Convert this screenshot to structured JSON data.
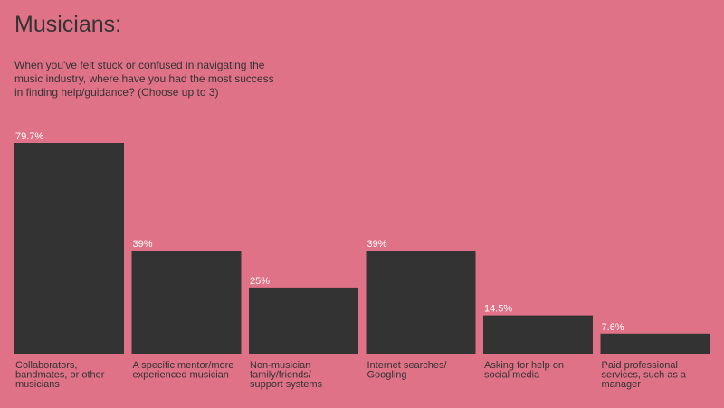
{
  "title": "Musicians:",
  "subtitle": "When you've felt stuck or confused in navigating the music industry, where have you had the most success in finding help/guidance? (Choose up to 3)",
  "colors": {
    "background": "#e07287",
    "bar": "#333333",
    "value_label": "#ffffff",
    "text": "#333333"
  },
  "chart_data": {
    "type": "bar",
    "title": "Musicians:",
    "subtitle": "When you've felt stuck or confused in navigating the music industry, where have you had the most success in finding help/guidance? (Choose up to 3)",
    "categories": [
      [
        "Collaborators,",
        "bandmates, or other",
        "musicians"
      ],
      [
        "A specific mentor/more",
        "experienced musician"
      ],
      [
        "Non-musician",
        "family/friends/",
        "support systems"
      ],
      [
        "Internet searches/",
        "Googling"
      ],
      [
        "Asking for help on",
        "social media"
      ],
      [
        "Paid professional",
        "services, such as a",
        "manager"
      ]
    ],
    "values": [
      79.7,
      39,
      25,
      39,
      14.5,
      7.6
    ],
    "value_labels": [
      "79.7%",
      "39%",
      "25%",
      "39%",
      "14.5%",
      "7.6%"
    ],
    "ylim": [
      0,
      79.7
    ],
    "xlabel": "",
    "ylabel": "",
    "grid": false,
    "legend": "none"
  }
}
